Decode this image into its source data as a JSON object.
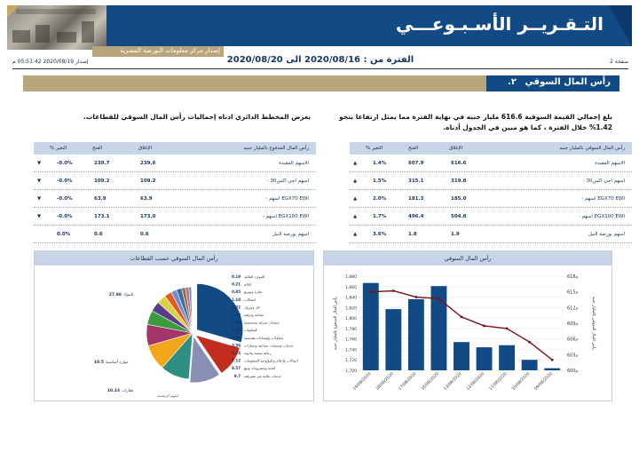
{
  "banner": {
    "title": "التـقـريــر الأسـبـوعـــي",
    "subtitle": "إصدار مركز معلومات البورصة المصرية"
  },
  "info": {
    "issue_date": "إصدار 2020/08/19 05:51:42 م",
    "period": "الفترة من : 2020/08/16 الى 2020/08/20",
    "page": "صفحة 2"
  },
  "section": {
    "number": "٢.",
    "title": "رأس المال السوقي"
  },
  "paragraphs": {
    "right": "بلغ إجمالي القيمة السوقية 616.6 مليار جنيه في نهاية الفترة مما يمثل ارتفاعا بنحو 1.42% خلال الفترة ، كما هو مبين في الجدول أدناه.",
    "left": "يعرض المخطط الدائري ادناه إجماليات رأس المال السوقي للقطاعات."
  },
  "table_market_cap": {
    "headers": [
      "رأس المال السوقي بالمليار جنيه",
      "الإغلاق",
      "الفتح",
      "% التغير"
    ],
    "rows": [
      {
        "label": "الاسهم المقيدة",
        "close": "616.6",
        "open": "607.9",
        "change": "1.4%",
        "dir": "▲"
      },
      {
        "label": "- اسهم اجي اكس30",
        "close": "319.8",
        "open": "315.1",
        "change": "1.5%",
        "dir": "▲"
      },
      {
        "label": "- اسهم EGX70 EWI",
        "close": "185.0",
        "open": "181.3",
        "change": "2.0%",
        "dir": "▲"
      },
      {
        "label": "- اسهم EGX100 EWI",
        "close": "504.8",
        "open": "496.4",
        "change": "1.7%",
        "dir": "▲"
      },
      {
        "label": "اسهم بورصة النيل",
        "close": "1.9",
        "open": "1.8",
        "change": "3.6%",
        "dir": "▲"
      }
    ]
  },
  "table_paid_cap": {
    "headers": [
      "رأس المال المدفوع بالمليار جنيه",
      "الإغلاق",
      "الفتح",
      "% التغير"
    ],
    "rows": [
      {
        "label": "الاسهم المقيدة",
        "close": "239.6",
        "open": "239.7",
        "change": "-0.0%",
        "dir": "▼"
      },
      {
        "label": "- اسهم اجي اكس30",
        "close": "109.2",
        "open": "109.2",
        "change": "-0.0%",
        "dir": "▼"
      },
      {
        "label": "- اسهم EGX70 EWI",
        "close": "63.9",
        "open": "63.9",
        "change": "-0.0%",
        "dir": "▼"
      },
      {
        "label": "- اسهم EGX100 EWI",
        "close": "173.0",
        "open": "173.1",
        "change": "-0.0%",
        "dir": "▼"
      },
      {
        "label": "اسهم بورصة النيل",
        "close": "0.6",
        "open": "0.6",
        "change": "0.0%",
        "dir": ""
      }
    ]
  },
  "chart_data": [
    {
      "type": "bar",
      "title": "رأس المال السوقي",
      "categories": [
        "19/08/2020",
        "18/08/2020",
        "17/08/2020",
        "16/08/2020",
        "13/08/2020",
        "12/08/2020",
        "11/08/2020",
        "10/08/2020",
        "09/08/2020"
      ],
      "series": [
        {
          "values": [
            1867,
            1817,
            1836,
            1861,
            1754,
            1744,
            1748,
            1720,
            1704
          ],
          "kind": "bar",
          "color": "#124a86"
        },
        {
          "values": [
            615.0,
            615.2,
            614.0,
            613.7,
            610.2,
            608.5,
            608.0,
            605.4,
            602.0
          ],
          "kind": "line",
          "color": "#7a1418"
        }
      ],
      "left_axis": {
        "label": "رأس المال المدفوع بالمليار جنيه",
        "ticks": [
          "1,880",
          "1,860",
          "1,840",
          "1,820",
          "1,800",
          "1,780",
          "1,760",
          "1,740",
          "1,720",
          "1,700"
        ],
        "ylim": [
          1700,
          1880
        ]
      },
      "right_axis": {
        "label": "رأس المال السوقي بالمليار جنيه",
        "ticks": [
          "618م",
          "615م",
          "612م",
          "609م",
          "606م",
          "603م",
          "600م"
        ],
        "ylim": [
          600,
          618
        ]
      }
    },
    {
      "type": "pie",
      "title": "رأس المال السوقي حسب القطاعات",
      "slices": [
        {
          "label": "البنوك",
          "value": 27.96,
          "color": "#124a86"
        },
        {
          "label": "موارد أساسية",
          "value": 10.5,
          "color": "#c22d1e"
        },
        {
          "label": "عقارات",
          "value": 10.23,
          "color": "#8a8fb6"
        },
        {
          "label": "خدمات مالية غير مصرفية",
          "value": 9.7,
          "color": "#2f8f83"
        },
        {
          "label": "أغذية ومشروبات وتبغ",
          "value": 8.57,
          "color": "#f2a71b"
        },
        {
          "label": "اتصالات وإعلام وتكنولوجيا المعلومات",
          "value": 7.12,
          "color": "#a2356b"
        },
        {
          "label": "رعاية صحية وادوية",
          "value": 4.74,
          "color": "#3c9a3f"
        },
        {
          "label": "خدمات ومنتجات صناعية وسيارات",
          "value": 3.36,
          "color": "#5a3d86"
        },
        {
          "label": "مقاولات وإنشاءات هندسية",
          "value": 3.04,
          "color": "#d7d146"
        },
        {
          "label": "كيماويات",
          "value": 2.46,
          "color": "#e05a2a"
        },
        {
          "label": "منتجات منزلية وشخصية",
          "value": 1.87,
          "color": "#6f8ec9"
        },
        {
          "label": "سياحة وترفيه",
          "value": 1.79,
          "color": "#3a6ea5"
        },
        {
          "label": "غاز وبترول",
          "value": 1.22,
          "color": "#9c6b3a"
        },
        {
          "label": "اتصالات",
          "value": 1.18,
          "color": "#c26b98"
        },
        {
          "label": "تجارة وتوزيع",
          "value": 0.85,
          "color": "#4e9aa8"
        },
        {
          "label": "إعلام",
          "value": 0.21,
          "color": "#b5b5b5"
        },
        {
          "label": "الموارد المالية",
          "value": 0.19,
          "color": "#666666"
        }
      ],
      "footnote": "اسهم الرئيسية"
    }
  ]
}
